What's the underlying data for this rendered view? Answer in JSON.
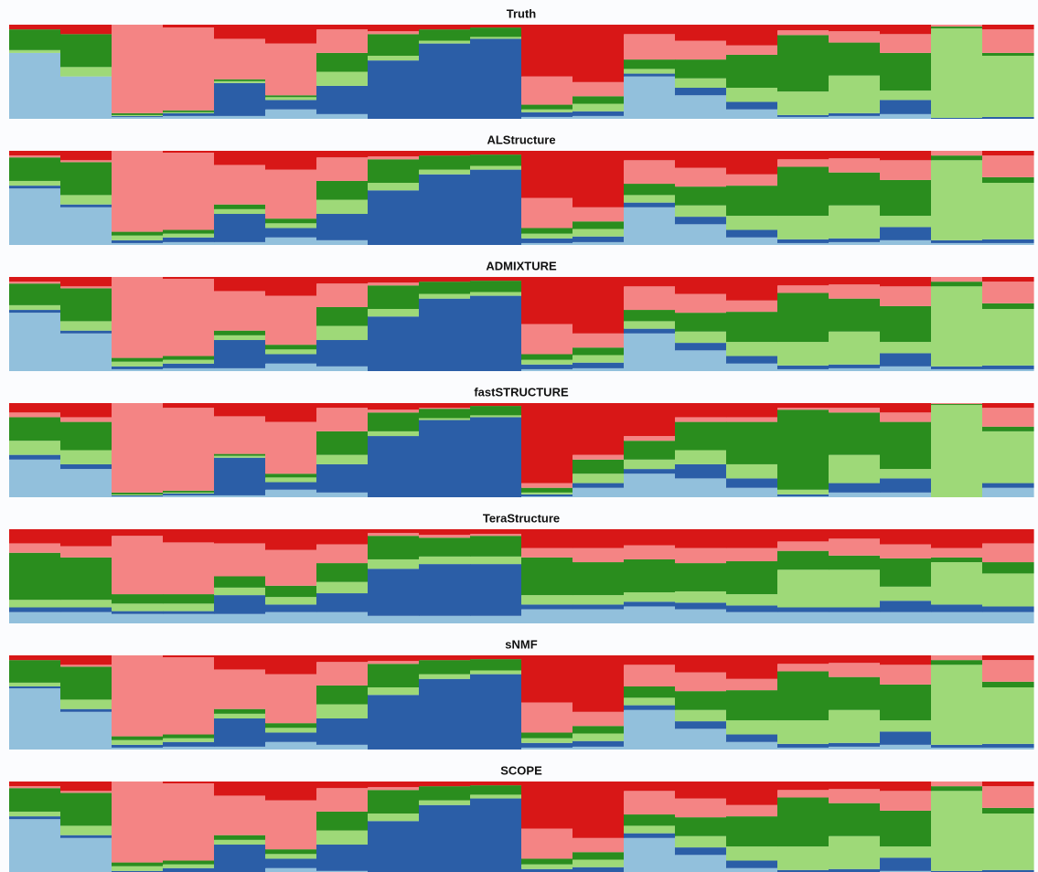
{
  "chart_data": [
    {
      "type": "bar",
      "stacked": true,
      "title": "Truth",
      "ylim": [
        0,
        100
      ],
      "series": [
        {
          "color": "#92c0dc",
          "values": [
            70,
            45,
            2,
            3,
            3,
            10,
            5,
            0,
            0,
            0,
            2,
            3,
            45,
            25,
            10,
            2,
            3,
            5,
            0,
            0
          ]
        },
        {
          "color": "#2b5ea7",
          "values": [
            0,
            0,
            1,
            3,
            35,
            10,
            30,
            62,
            80,
            85,
            5,
            5,
            3,
            8,
            8,
            2,
            3,
            15,
            1,
            2
          ]
        },
        {
          "color": "#9ed978",
          "values": [
            3,
            10,
            1,
            1,
            2,
            3,
            15,
            5,
            3,
            2,
            3,
            8,
            5,
            10,
            15,
            25,
            40,
            10,
            95,
            65
          ]
        },
        {
          "color": "#2a8d1e",
          "values": [
            22,
            35,
            2,
            2,
            2,
            2,
            20,
            23,
            12,
            10,
            5,
            8,
            10,
            20,
            35,
            60,
            35,
            40,
            2,
            3
          ]
        },
        {
          "color": "#f48484",
          "values": [
            0,
            0,
            94,
            88,
            43,
            55,
            25,
            3,
            0,
            0,
            30,
            15,
            27,
            20,
            10,
            5,
            12,
            20,
            2,
            25
          ]
        },
        {
          "color": "#d81717",
          "values": [
            5,
            10,
            0,
            3,
            15,
            20,
            5,
            7,
            5,
            3,
            55,
            61,
            10,
            17,
            22,
            6,
            7,
            10,
            0,
            5
          ]
        }
      ]
    },
    {
      "type": "bar",
      "stacked": true,
      "title": "ALStructure",
      "ylim": [
        0,
        100
      ],
      "series": [
        {
          "color": "#92c0dc",
          "values": [
            60,
            40,
            2,
            3,
            3,
            8,
            5,
            0,
            0,
            0,
            2,
            3,
            40,
            22,
            8,
            2,
            3,
            5,
            2,
            2
          ]
        },
        {
          "color": "#2b5ea7",
          "values": [
            3,
            3,
            3,
            5,
            30,
            10,
            28,
            58,
            75,
            80,
            5,
            6,
            5,
            8,
            8,
            4,
            4,
            14,
            3,
            4
          ]
        },
        {
          "color": "#9ed978",
          "values": [
            5,
            10,
            5,
            4,
            5,
            5,
            15,
            8,
            5,
            4,
            5,
            8,
            8,
            12,
            15,
            25,
            35,
            12,
            85,
            60
          ]
        },
        {
          "color": "#2a8d1e",
          "values": [
            25,
            35,
            4,
            4,
            5,
            5,
            20,
            25,
            15,
            12,
            6,
            8,
            12,
            20,
            32,
            52,
            35,
            38,
            5,
            6
          ]
        },
        {
          "color": "#f48484",
          "values": [
            2,
            2,
            86,
            82,
            42,
            52,
            25,
            3,
            0,
            0,
            32,
            15,
            25,
            20,
            12,
            8,
            15,
            21,
            5,
            23
          ]
        },
        {
          "color": "#d81717",
          "values": [
            5,
            10,
            0,
            2,
            15,
            20,
            7,
            6,
            5,
            4,
            50,
            60,
            10,
            18,
            25,
            9,
            8,
            10,
            0,
            5
          ]
        }
      ]
    },
    {
      "type": "bar",
      "stacked": true,
      "title": "ADMIXTURE",
      "ylim": [
        0,
        100
      ],
      "series": [
        {
          "color": "#92c0dc",
          "values": [
            62,
            40,
            2,
            3,
            3,
            8,
            5,
            0,
            0,
            0,
            2,
            3,
            40,
            22,
            8,
            2,
            3,
            5,
            2,
            2
          ]
        },
        {
          "color": "#2b5ea7",
          "values": [
            3,
            3,
            3,
            5,
            30,
            10,
            28,
            58,
            77,
            80,
            5,
            6,
            5,
            8,
            8,
            4,
            4,
            14,
            3,
            4
          ]
        },
        {
          "color": "#9ed978",
          "values": [
            5,
            10,
            5,
            4,
            5,
            5,
            15,
            8,
            5,
            4,
            5,
            8,
            8,
            12,
            15,
            25,
            35,
            12,
            85,
            60
          ]
        },
        {
          "color": "#2a8d1e",
          "values": [
            23,
            35,
            4,
            4,
            5,
            5,
            20,
            25,
            13,
            12,
            6,
            8,
            12,
            20,
            32,
            52,
            35,
            38,
            5,
            6
          ]
        },
        {
          "color": "#f48484",
          "values": [
            2,
            2,
            86,
            82,
            42,
            52,
            25,
            3,
            0,
            0,
            32,
            15,
            25,
            20,
            12,
            8,
            15,
            21,
            5,
            23
          ]
        },
        {
          "color": "#d81717",
          "values": [
            5,
            10,
            0,
            2,
            15,
            20,
            7,
            6,
            5,
            4,
            50,
            60,
            10,
            18,
            25,
            9,
            8,
            10,
            0,
            5
          ]
        }
      ]
    },
    {
      "type": "bar",
      "stacked": true,
      "title": "fastSTRUCTURE",
      "ylim": [
        0,
        100
      ],
      "series": [
        {
          "color": "#92c0dc",
          "values": [
            40,
            30,
            1,
            2,
            2,
            8,
            5,
            0,
            0,
            0,
            1,
            10,
            25,
            20,
            10,
            1,
            5,
            5,
            0,
            10
          ]
        },
        {
          "color": "#2b5ea7",
          "values": [
            5,
            5,
            1,
            2,
            40,
            8,
            30,
            65,
            82,
            85,
            2,
            5,
            5,
            15,
            10,
            2,
            10,
            15,
            0,
            5
          ]
        },
        {
          "color": "#9ed978",
          "values": [
            15,
            15,
            1,
            1,
            2,
            5,
            10,
            5,
            2,
            2,
            2,
            10,
            10,
            15,
            15,
            5,
            30,
            10,
            98,
            55
          ]
        },
        {
          "color": "#2a8d1e",
          "values": [
            25,
            30,
            2,
            2,
            2,
            4,
            25,
            20,
            10,
            10,
            5,
            15,
            20,
            30,
            45,
            85,
            45,
            50,
            1,
            5
          ]
        },
        {
          "color": "#f48484",
          "values": [
            5,
            5,
            95,
            88,
            40,
            55,
            25,
            3,
            1,
            0,
            5,
            5,
            5,
            5,
            5,
            2,
            5,
            10,
            1,
            20
          ]
        },
        {
          "color": "#d81717",
          "values": [
            10,
            15,
            0,
            5,
            14,
            20,
            5,
            7,
            5,
            3,
            85,
            55,
            35,
            15,
            15,
            5,
            5,
            10,
            0,
            5
          ]
        }
      ]
    },
    {
      "type": "bar",
      "stacked": true,
      "title": "TeraStructure",
      "ylim": [
        0,
        100
      ],
      "series": [
        {
          "color": "#92c0dc",
          "values": [
            12,
            12,
            10,
            10,
            10,
            12,
            12,
            8,
            8,
            8,
            15,
            15,
            18,
            15,
            12,
            12,
            12,
            12,
            12,
            12
          ]
        },
        {
          "color": "#2b5ea7",
          "values": [
            5,
            5,
            3,
            3,
            20,
            8,
            20,
            50,
            55,
            55,
            5,
            5,
            5,
            7,
            7,
            5,
            5,
            12,
            8,
            6
          ]
        },
        {
          "color": "#9ed978",
          "values": [
            8,
            8,
            8,
            8,
            8,
            8,
            12,
            10,
            8,
            8,
            10,
            10,
            10,
            12,
            12,
            40,
            40,
            15,
            45,
            35
          ]
        },
        {
          "color": "#2a8d1e",
          "values": [
            50,
            45,
            10,
            10,
            12,
            12,
            20,
            25,
            20,
            22,
            40,
            35,
            35,
            30,
            35,
            20,
            15,
            30,
            5,
            12
          ]
        },
        {
          "color": "#f48484",
          "values": [
            10,
            12,
            62,
            55,
            35,
            38,
            20,
            3,
            3,
            2,
            10,
            15,
            15,
            16,
            14,
            10,
            18,
            15,
            10,
            20
          ]
        },
        {
          "color": "#d81717",
          "values": [
            15,
            18,
            7,
            14,
            15,
            22,
            16,
            4,
            6,
            5,
            20,
            20,
            17,
            20,
            20,
            13,
            10,
            16,
            20,
            15
          ]
        }
      ]
    },
    {
      "type": "bar",
      "stacked": true,
      "title": "sNMF",
      "ylim": [
        0,
        100
      ],
      "series": [
        {
          "color": "#92c0dc",
          "values": [
            65,
            40,
            2,
            3,
            3,
            8,
            5,
            0,
            0,
            0,
            2,
            3,
            42,
            22,
            8,
            2,
            3,
            5,
            2,
            2
          ]
        },
        {
          "color": "#2b5ea7",
          "values": [
            2,
            3,
            3,
            5,
            30,
            10,
            28,
            58,
            75,
            80,
            5,
            6,
            5,
            8,
            8,
            4,
            4,
            14,
            3,
            4
          ]
        },
        {
          "color": "#9ed978",
          "values": [
            4,
            10,
            5,
            4,
            5,
            5,
            15,
            8,
            5,
            4,
            5,
            8,
            8,
            12,
            15,
            25,
            35,
            12,
            85,
            60
          ]
        },
        {
          "color": "#2a8d1e",
          "values": [
            24,
            35,
            4,
            4,
            5,
            5,
            20,
            25,
            15,
            12,
            6,
            8,
            12,
            20,
            32,
            52,
            35,
            38,
            5,
            6
          ]
        },
        {
          "color": "#f48484",
          "values": [
            0,
            2,
            86,
            82,
            42,
            52,
            25,
            3,
            0,
            0,
            32,
            15,
            23,
            20,
            12,
            8,
            15,
            21,
            5,
            23
          ]
        },
        {
          "color": "#d81717",
          "values": [
            5,
            10,
            0,
            2,
            15,
            20,
            7,
            6,
            5,
            4,
            50,
            60,
            10,
            18,
            25,
            9,
            8,
            10,
            0,
            5
          ]
        }
      ]
    },
    {
      "type": "bar",
      "stacked": true,
      "title": "SCOPE",
      "ylim": [
        0,
        100
      ],
      "series": [
        {
          "color": "#92c0dc",
          "values": [
            60,
            40,
            2,
            3,
            3,
            8,
            5,
            0,
            0,
            0,
            2,
            3,
            40,
            22,
            8,
            2,
            3,
            5,
            2,
            2
          ]
        },
        {
          "color": "#2b5ea7",
          "values": [
            3,
            3,
            3,
            5,
            30,
            10,
            28,
            58,
            75,
            82,
            5,
            6,
            5,
            8,
            8,
            4,
            4,
            14,
            3,
            4
          ]
        },
        {
          "color": "#9ed978",
          "values": [
            5,
            10,
            5,
            4,
            5,
            5,
            15,
            8,
            5,
            4,
            5,
            8,
            8,
            12,
            15,
            25,
            35,
            12,
            85,
            60
          ]
        },
        {
          "color": "#2a8d1e",
          "values": [
            25,
            35,
            4,
            4,
            5,
            5,
            20,
            25,
            15,
            10,
            6,
            8,
            12,
            20,
            32,
            52,
            35,
            38,
            5,
            6
          ]
        },
        {
          "color": "#f48484",
          "values": [
            2,
            2,
            86,
            82,
            42,
            52,
            25,
            3,
            0,
            0,
            32,
            15,
            25,
            20,
            12,
            8,
            15,
            21,
            5,
            23
          ]
        },
        {
          "color": "#d81717",
          "values": [
            5,
            10,
            0,
            2,
            15,
            20,
            7,
            6,
            5,
            4,
            50,
            60,
            10,
            18,
            25,
            9,
            8,
            10,
            0,
            5
          ]
        }
      ]
    }
  ]
}
